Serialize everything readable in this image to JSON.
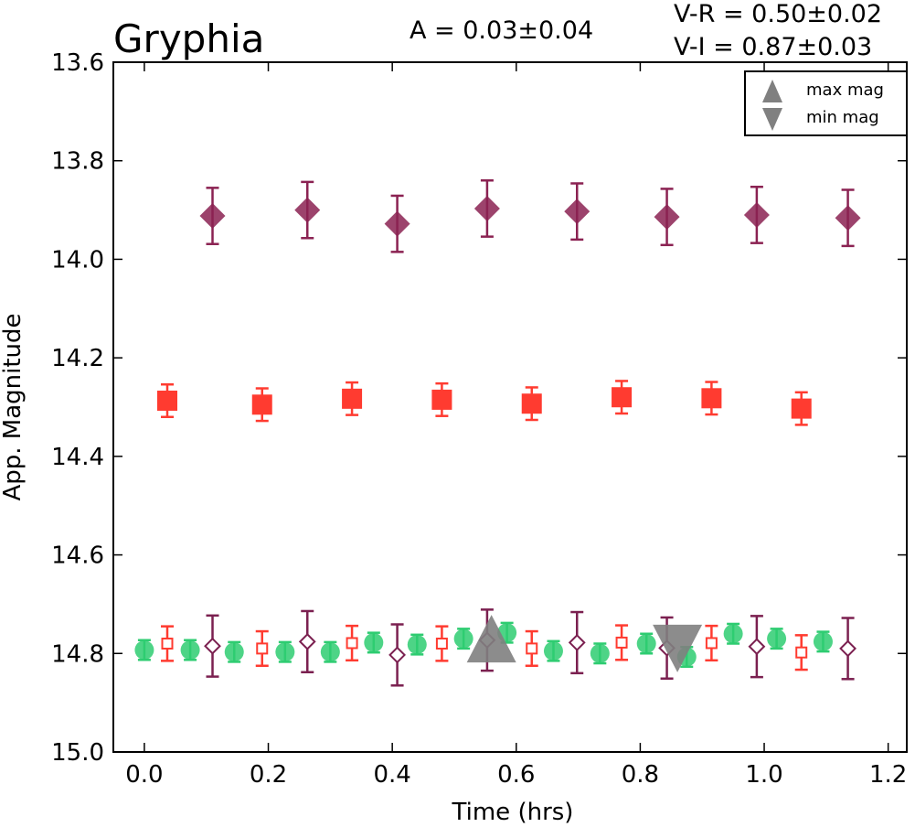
{
  "chart_data": {
    "type": "scatter",
    "title": "Gryphia",
    "annotations": {
      "amplitude": "A  = 0.03±0.04",
      "v_r": "V-R = 0.50±0.02",
      "v_i": "V-I  = 0.87±0.03"
    },
    "xlabel": "Time (hrs)",
    "ylabel": "App. Magnitude",
    "xlim": [
      -0.05,
      1.23
    ],
    "ylim": [
      15.0,
      13.6
    ],
    "y_inverted": true,
    "grid": false,
    "xticks": [
      "0.0",
      "0.2",
      "0.4",
      "0.6",
      "0.8",
      "1.0",
      "1.2"
    ],
    "yticks": [
      "13.6",
      "13.8",
      "14.0",
      "14.2",
      "14.4",
      "14.6",
      "14.8",
      "15.0"
    ],
    "legend": {
      "position": "top-right",
      "entries": [
        {
          "label": "max mag",
          "marker": "triangle-up",
          "color": "#808080"
        },
        {
          "label": "min mag",
          "marker": "triangle-down",
          "color": "#808080"
        }
      ]
    },
    "series": [
      {
        "marker": "circle",
        "filled": true,
        "color": "#2ecc71",
        "points": [
          {
            "x": 0.0,
            "y": 14.793,
            "err": 0.02
          },
          {
            "x": 0.074,
            "y": 14.793,
            "err": 0.02
          },
          {
            "x": 0.145,
            "y": 14.797,
            "err": 0.02
          },
          {
            "x": 0.227,
            "y": 14.797,
            "err": 0.02
          },
          {
            "x": 0.3,
            "y": 14.797,
            "err": 0.02
          },
          {
            "x": 0.37,
            "y": 14.778,
            "err": 0.02
          },
          {
            "x": 0.44,
            "y": 14.782,
            "err": 0.02
          },
          {
            "x": 0.515,
            "y": 14.77,
            "err": 0.02
          },
          {
            "x": 0.585,
            "y": 14.758,
            "err": 0.02
          },
          {
            "x": 0.66,
            "y": 14.795,
            "err": 0.02
          },
          {
            "x": 0.735,
            "y": 14.8,
            "err": 0.02
          },
          {
            "x": 0.81,
            "y": 14.78,
            "err": 0.02
          },
          {
            "x": 0.875,
            "y": 14.807,
            "err": 0.02
          },
          {
            "x": 0.95,
            "y": 14.76,
            "err": 0.02
          },
          {
            "x": 1.02,
            "y": 14.77,
            "err": 0.02
          },
          {
            "x": 1.095,
            "y": 14.776,
            "err": 0.02
          }
        ]
      },
      {
        "marker": "square",
        "filled": false,
        "color": "#ff3b30",
        "points": [
          {
            "x": 0.037,
            "y": 14.78,
            "err": 0.035
          },
          {
            "x": 0.19,
            "y": 14.79,
            "err": 0.035
          },
          {
            "x": 0.335,
            "y": 14.779,
            "err": 0.035
          },
          {
            "x": 0.48,
            "y": 14.78,
            "err": 0.035
          },
          {
            "x": 0.625,
            "y": 14.79,
            "err": 0.035
          },
          {
            "x": 0.77,
            "y": 14.778,
            "err": 0.035
          },
          {
            "x": 0.915,
            "y": 14.779,
            "err": 0.035
          },
          {
            "x": 1.06,
            "y": 14.798,
            "err": 0.035
          }
        ]
      },
      {
        "marker": "diamond",
        "filled": false,
        "color": "#7b2050",
        "points": [
          {
            "x": 0.11,
            "y": 14.785,
            "err": 0.062
          },
          {
            "x": 0.263,
            "y": 14.776,
            "err": 0.062
          },
          {
            "x": 0.408,
            "y": 14.803,
            "err": 0.062
          },
          {
            "x": 0.553,
            "y": 14.773,
            "err": 0.062
          },
          {
            "x": 0.698,
            "y": 14.778,
            "err": 0.062
          },
          {
            "x": 0.843,
            "y": 14.789,
            "err": 0.062
          },
          {
            "x": 0.988,
            "y": 14.786,
            "err": 0.062
          },
          {
            "x": 1.135,
            "y": 14.79,
            "err": 0.062
          }
        ]
      },
      {
        "marker": "square",
        "filled": true,
        "color": "#ff3b30",
        "points": [
          {
            "x": 0.037,
            "y": 14.287,
            "err": 0.033
          },
          {
            "x": 0.19,
            "y": 14.295,
            "err": 0.033
          },
          {
            "x": 0.335,
            "y": 14.283,
            "err": 0.033
          },
          {
            "x": 0.48,
            "y": 14.285,
            "err": 0.033
          },
          {
            "x": 0.625,
            "y": 14.293,
            "err": 0.033
          },
          {
            "x": 0.77,
            "y": 14.28,
            "err": 0.033
          },
          {
            "x": 0.915,
            "y": 14.282,
            "err": 0.033
          },
          {
            "x": 1.06,
            "y": 14.303,
            "err": 0.033
          }
        ]
      },
      {
        "marker": "diamond",
        "filled": true,
        "color": "#8b2252",
        "points": [
          {
            "x": 0.11,
            "y": 13.912,
            "err": 0.057
          },
          {
            "x": 0.263,
            "y": 13.9,
            "err": 0.057
          },
          {
            "x": 0.408,
            "y": 13.928,
            "err": 0.057
          },
          {
            "x": 0.553,
            "y": 13.897,
            "err": 0.057
          },
          {
            "x": 0.698,
            "y": 13.903,
            "err": 0.057
          },
          {
            "x": 0.843,
            "y": 13.914,
            "err": 0.057
          },
          {
            "x": 0.988,
            "y": 13.91,
            "err": 0.057
          },
          {
            "x": 1.135,
            "y": 13.916,
            "err": 0.057
          }
        ]
      }
    ],
    "extrema": [
      {
        "label": "max mag",
        "marker": "triangle-up",
        "color": "#808080",
        "x": 0.56,
        "y": 14.77
      },
      {
        "label": "min mag",
        "marker": "triangle-down",
        "color": "#808080",
        "x": 0.86,
        "y": 14.79
      }
    ]
  }
}
